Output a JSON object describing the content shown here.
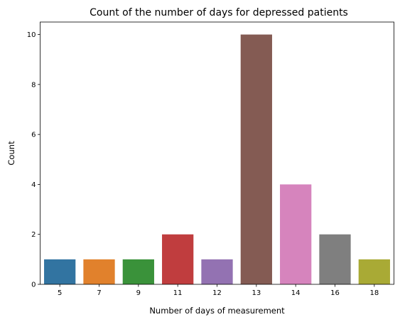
{
  "chart_data": {
    "type": "bar",
    "title": "Count of the number of days for depressed patients",
    "xlabel": "Number of days of measurement",
    "ylabel": "Count",
    "categories": [
      "5",
      "7",
      "9",
      "11",
      "12",
      "13",
      "14",
      "16",
      "18"
    ],
    "values": [
      1,
      1,
      1,
      2,
      1,
      10,
      4,
      2,
      1
    ],
    "colors": [
      "#3274a1",
      "#e1812c",
      "#3a923a",
      "#c03d3e",
      "#9372b2",
      "#845b53",
      "#d684bd",
      "#7f7f7f",
      "#a9aa35"
    ],
    "ylim": [
      0,
      10.5
    ],
    "yticks": [
      0,
      2,
      4,
      6,
      8,
      10
    ],
    "grid": false,
    "legend": "none"
  }
}
